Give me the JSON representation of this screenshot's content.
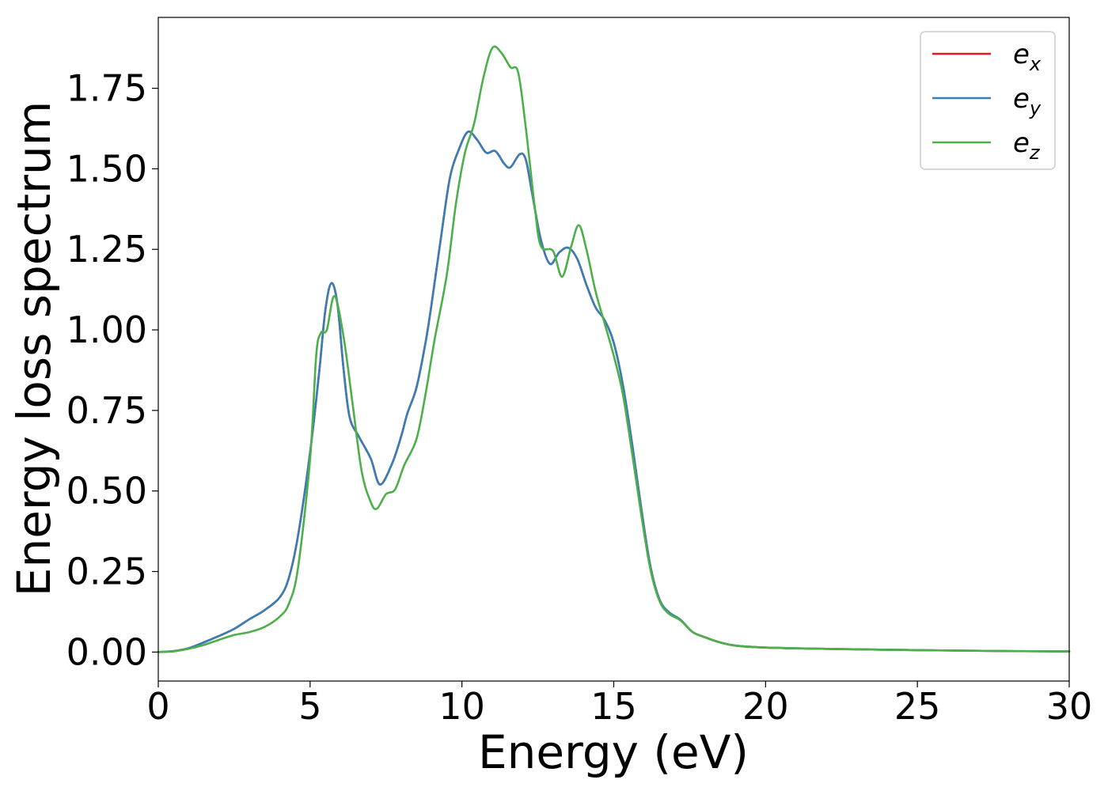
{
  "chart_data": {
    "type": "line",
    "xlabel": "Energy (eV)",
    "ylabel": "Energy loss spectrum",
    "xlim": [
      0,
      30
    ],
    "ylim": [
      -0.09,
      1.97
    ],
    "x_ticks": [
      0,
      5,
      10,
      15,
      20,
      25,
      30
    ],
    "x_tick_labels": [
      "0",
      "5",
      "10",
      "15",
      "20",
      "25",
      "30"
    ],
    "y_ticks": [
      0,
      0.25,
      0.5,
      0.75,
      1.0,
      1.25,
      1.5,
      1.75
    ],
    "y_tick_labels": [
      "0.00",
      "0.25",
      "0.50",
      "0.75",
      "1.00",
      "1.25",
      "1.50",
      "1.75"
    ],
    "grid": false,
    "legend_position": "top-right",
    "series": [
      {
        "name": "e",
        "sub": "x",
        "color": "#e41a1c",
        "points": [
          [
            0,
            0
          ],
          [
            0.5,
            0.003
          ],
          [
            1,
            0.012
          ],
          [
            1.5,
            0.03
          ],
          [
            2,
            0.05
          ],
          [
            2.5,
            0.072
          ],
          [
            3,
            0.102
          ],
          [
            3.5,
            0.13
          ],
          [
            4,
            0.17
          ],
          [
            4.3,
            0.23
          ],
          [
            4.6,
            0.36
          ],
          [
            5,
            0.62
          ],
          [
            5.3,
            0.87
          ],
          [
            5.5,
            1.06
          ],
          [
            5.7,
            1.145
          ],
          [
            5.9,
            1.08
          ],
          [
            6.1,
            0.88
          ],
          [
            6.3,
            0.73
          ],
          [
            6.6,
            0.67
          ],
          [
            7,
            0.6
          ],
          [
            7.3,
            0.52
          ],
          [
            7.7,
            0.585
          ],
          [
            8,
            0.67
          ],
          [
            8.2,
            0.74
          ],
          [
            8.5,
            0.82
          ],
          [
            8.8,
            0.96
          ],
          [
            9,
            1.08
          ],
          [
            9.3,
            1.28
          ],
          [
            9.6,
            1.47
          ],
          [
            9.9,
            1.56
          ],
          [
            10.2,
            1.615
          ],
          [
            10.5,
            1.59
          ],
          [
            10.8,
            1.55
          ],
          [
            11.1,
            1.555
          ],
          [
            11.4,
            1.515
          ],
          [
            11.6,
            1.505
          ],
          [
            11.9,
            1.545
          ],
          [
            12.1,
            1.53
          ],
          [
            12.3,
            1.43
          ],
          [
            12.6,
            1.28
          ],
          [
            12.9,
            1.205
          ],
          [
            13.2,
            1.24
          ],
          [
            13.5,
            1.255
          ],
          [
            13.8,
            1.22
          ],
          [
            14.1,
            1.14
          ],
          [
            14.4,
            1.07
          ],
          [
            14.7,
            1.03
          ],
          [
            15,
            0.96
          ],
          [
            15.3,
            0.83
          ],
          [
            15.6,
            0.65
          ],
          [
            15.9,
            0.45
          ],
          [
            16.2,
            0.27
          ],
          [
            16.5,
            0.165
          ],
          [
            16.8,
            0.125
          ],
          [
            17.2,
            0.1
          ],
          [
            17.6,
            0.062
          ],
          [
            18,
            0.046
          ],
          [
            18.5,
            0.03
          ],
          [
            19,
            0.02
          ],
          [
            20,
            0.014
          ],
          [
            22,
            0.01
          ],
          [
            25,
            0.006
          ],
          [
            28,
            0.003
          ],
          [
            30,
            0.002
          ]
        ]
      },
      {
        "name": "e",
        "sub": "y",
        "color": "#377eb8",
        "points": [
          [
            0,
            0
          ],
          [
            0.5,
            0.003
          ],
          [
            1,
            0.012
          ],
          [
            1.5,
            0.03
          ],
          [
            2,
            0.05
          ],
          [
            2.5,
            0.072
          ],
          [
            3,
            0.102
          ],
          [
            3.5,
            0.13
          ],
          [
            4,
            0.17
          ],
          [
            4.3,
            0.23
          ],
          [
            4.6,
            0.36
          ],
          [
            5,
            0.62
          ],
          [
            5.3,
            0.87
          ],
          [
            5.5,
            1.06
          ],
          [
            5.7,
            1.145
          ],
          [
            5.9,
            1.08
          ],
          [
            6.1,
            0.88
          ],
          [
            6.3,
            0.73
          ],
          [
            6.6,
            0.67
          ],
          [
            7,
            0.6
          ],
          [
            7.3,
            0.52
          ],
          [
            7.7,
            0.585
          ],
          [
            8,
            0.67
          ],
          [
            8.2,
            0.74
          ],
          [
            8.5,
            0.82
          ],
          [
            8.8,
            0.96
          ],
          [
            9,
            1.08
          ],
          [
            9.3,
            1.28
          ],
          [
            9.6,
            1.47
          ],
          [
            9.9,
            1.56
          ],
          [
            10.2,
            1.615
          ],
          [
            10.5,
            1.59
          ],
          [
            10.8,
            1.55
          ],
          [
            11.1,
            1.555
          ],
          [
            11.4,
            1.515
          ],
          [
            11.6,
            1.505
          ],
          [
            11.9,
            1.545
          ],
          [
            12.1,
            1.53
          ],
          [
            12.3,
            1.43
          ],
          [
            12.6,
            1.28
          ],
          [
            12.9,
            1.205
          ],
          [
            13.2,
            1.24
          ],
          [
            13.5,
            1.255
          ],
          [
            13.8,
            1.22
          ],
          [
            14.1,
            1.14
          ],
          [
            14.4,
            1.07
          ],
          [
            14.7,
            1.03
          ],
          [
            15,
            0.96
          ],
          [
            15.3,
            0.83
          ],
          [
            15.6,
            0.65
          ],
          [
            15.9,
            0.45
          ],
          [
            16.2,
            0.27
          ],
          [
            16.5,
            0.165
          ],
          [
            16.8,
            0.125
          ],
          [
            17.2,
            0.1
          ],
          [
            17.6,
            0.062
          ],
          [
            18,
            0.046
          ],
          [
            18.5,
            0.03
          ],
          [
            19,
            0.02
          ],
          [
            20,
            0.014
          ],
          [
            22,
            0.01
          ],
          [
            25,
            0.006
          ],
          [
            28,
            0.003
          ],
          [
            30,
            0.002
          ]
        ]
      },
      {
        "name": "e",
        "sub": "z",
        "color": "#4daf4a",
        "points": [
          [
            0,
            0
          ],
          [
            0.5,
            0.002
          ],
          [
            1,
            0.01
          ],
          [
            1.5,
            0.022
          ],
          [
            2,
            0.038
          ],
          [
            2.5,
            0.053
          ],
          [
            3,
            0.062
          ],
          [
            3.5,
            0.078
          ],
          [
            4,
            0.11
          ],
          [
            4.3,
            0.15
          ],
          [
            4.6,
            0.26
          ],
          [
            5,
            0.6
          ],
          [
            5.2,
            0.92
          ],
          [
            5.35,
            0.99
          ],
          [
            5.55,
            1.0
          ],
          [
            5.8,
            1.105
          ],
          [
            6.1,
            0.98
          ],
          [
            6.4,
            0.77
          ],
          [
            6.7,
            0.56
          ],
          [
            7,
            0.465
          ],
          [
            7.2,
            0.445
          ],
          [
            7.5,
            0.49
          ],
          [
            7.8,
            0.505
          ],
          [
            8.1,
            0.58
          ],
          [
            8.5,
            0.66
          ],
          [
            8.8,
            0.8
          ],
          [
            9.1,
            0.97
          ],
          [
            9.5,
            1.17
          ],
          [
            9.8,
            1.39
          ],
          [
            10.1,
            1.55
          ],
          [
            10.4,
            1.64
          ],
          [
            10.7,
            1.78
          ],
          [
            11,
            1.875
          ],
          [
            11.3,
            1.86
          ],
          [
            11.6,
            1.815
          ],
          [
            11.85,
            1.8
          ],
          [
            12.1,
            1.63
          ],
          [
            12.4,
            1.38
          ],
          [
            12.6,
            1.26
          ],
          [
            13,
            1.245
          ],
          [
            13.3,
            1.165
          ],
          [
            13.6,
            1.26
          ],
          [
            13.85,
            1.325
          ],
          [
            14.1,
            1.25
          ],
          [
            14.4,
            1.12
          ],
          [
            14.7,
            1.02
          ],
          [
            15,
            0.92
          ],
          [
            15.3,
            0.8
          ],
          [
            15.6,
            0.62
          ],
          [
            15.9,
            0.43
          ],
          [
            16.2,
            0.26
          ],
          [
            16.5,
            0.16
          ],
          [
            16.8,
            0.12
          ],
          [
            17.2,
            0.098
          ],
          [
            17.6,
            0.062
          ],
          [
            18,
            0.046
          ],
          [
            18.5,
            0.03
          ],
          [
            19,
            0.02
          ],
          [
            20,
            0.014
          ],
          [
            22,
            0.01
          ],
          [
            25,
            0.006
          ],
          [
            28,
            0.003
          ],
          [
            30,
            0.002
          ]
        ]
      }
    ]
  }
}
